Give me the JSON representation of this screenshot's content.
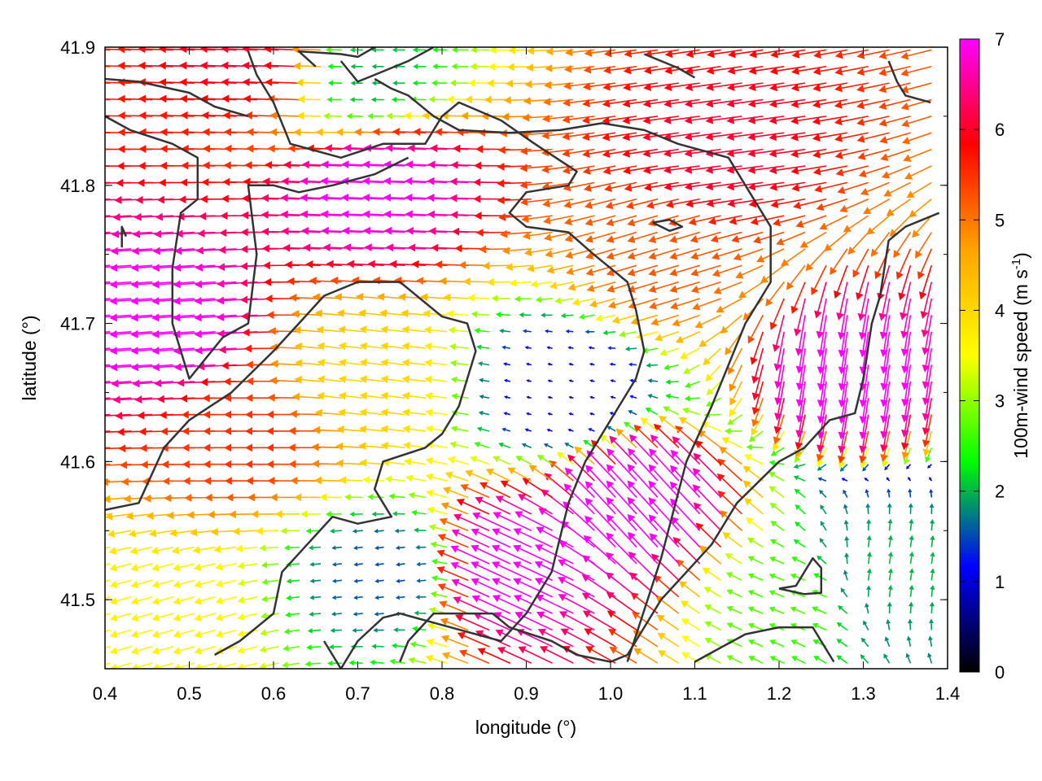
{
  "chart_data": {
    "type": "vector-field",
    "xlabel": "longitude (°)",
    "ylabel": "latitude (°)",
    "xlim": [
      0.4,
      1.4
    ],
    "ylim": [
      41.45,
      41.9
    ],
    "xticks": [
      "0.4",
      "0.5",
      "0.6",
      "0.7",
      "0.8",
      "0.9",
      "1.0",
      "1.1",
      "1.2",
      "1.3",
      "1.4"
    ],
    "yticks": [
      "41.5",
      "41.6",
      "41.7",
      "41.8",
      "41.9"
    ],
    "colorbar": {
      "label": "100m-wind speed (m s",
      "label_sup": "-1",
      "label_end": ")",
      "range": [
        0,
        7
      ],
      "ticks": [
        "0",
        "1",
        "2",
        "3",
        "4",
        "5",
        "6",
        "7"
      ],
      "stops": [
        "#000000",
        "#0000ff",
        "#00ff00",
        "#ffff00",
        "#ffa500",
        "#ff0000",
        "#ff00ff"
      ]
    },
    "field": {
      "description_units": "wind speed in m/s",
      "lon_step": 0.025,
      "lat_step": 0.012,
      "regions": [
        {
          "lon": 0.75,
          "lat": 41.8,
          "u": -7.0,
          "v": 0.3
        },
        {
          "lon": 0.5,
          "lat": 41.7,
          "u": -7.0,
          "v": -0.5
        },
        {
          "lon": 1.15,
          "lat": 41.82,
          "u": -6.0,
          "v": -0.8
        },
        {
          "lon": 1.28,
          "lat": 41.68,
          "u": -1.0,
          "v": -7.0
        },
        {
          "lon": 1.05,
          "lat": 41.56,
          "u": -5.0,
          "v": 5.5
        },
        {
          "lon": 0.9,
          "lat": 41.52,
          "u": -6.5,
          "v": 3.0
        },
        {
          "lon": 0.6,
          "lat": 41.62,
          "u": -5.5,
          "v": 0.0
        },
        {
          "lon": 0.72,
          "lat": 41.66,
          "u": -4.0,
          "v": 0.5
        },
        {
          "lon": 0.95,
          "lat": 41.65,
          "u": -0.8,
          "v": 0.2
        },
        {
          "lon": 0.74,
          "lat": 41.52,
          "u": -1.5,
          "v": -0.2
        },
        {
          "lon": 0.72,
          "lat": 41.88,
          "u": -2.0,
          "v": 0.0
        },
        {
          "lon": 1.22,
          "lat": 41.5,
          "u": -2.5,
          "v": 1.0
        },
        {
          "lon": 1.33,
          "lat": 41.52,
          "u": 0.3,
          "v": 2.0
        },
        {
          "lon": 0.48,
          "lat": 41.48,
          "u": -3.5,
          "v": -1.0
        },
        {
          "lon": 1.08,
          "lat": 41.75,
          "u": -5.0,
          "v": -1.5
        },
        {
          "lon": 0.6,
          "lat": 41.89,
          "u": -6.0,
          "v": 0.2
        }
      ]
    },
    "coastlines": [
      [
        [
          0.4,
          41.877
        ],
        [
          0.44,
          41.875
        ],
        [
          0.5,
          41.867
        ],
        [
          0.53,
          41.857
        ],
        [
          0.57,
          41.85
        ]
      ],
      [
        [
          0.57,
          41.897
        ],
        [
          0.58,
          41.88
        ],
        [
          0.6,
          41.86
        ],
        [
          0.62,
          41.83
        ],
        [
          0.68,
          41.82
        ],
        [
          0.73,
          41.83
        ],
        [
          0.75,
          41.83
        ],
        [
          0.78,
          41.83
        ],
        [
          0.8,
          41.85
        ],
        [
          0.82,
          41.86
        ],
        [
          0.87,
          41.847
        ],
        [
          0.91,
          41.83
        ],
        [
          0.96,
          41.81
        ],
        [
          0.95,
          41.8
        ],
        [
          0.9,
          41.795
        ],
        [
          0.88,
          41.78
        ],
        [
          0.9,
          41.77
        ],
        [
          0.95,
          41.766
        ],
        [
          0.98,
          41.75
        ],
        [
          1.02,
          41.73
        ],
        [
          1.03,
          41.71
        ],
        [
          1.04,
          41.68
        ],
        [
          1.03,
          41.66
        ],
        [
          1.0,
          41.63
        ],
        [
          0.97,
          41.6
        ],
        [
          0.95,
          41.57
        ],
        [
          0.93,
          41.52
        ],
        [
          0.9,
          41.49
        ],
        [
          0.87,
          41.47
        ],
        [
          0.81,
          41.48
        ],
        [
          0.75,
          41.49
        ],
        [
          0.73,
          41.487
        ],
        [
          0.7,
          41.47
        ],
        [
          0.68,
          41.45
        ],
        [
          0.66,
          41.47
        ]
      ],
      [
        [
          0.4,
          41.85
        ],
        [
          0.43,
          41.84
        ],
        [
          0.48,
          41.83
        ],
        [
          0.51,
          41.82
        ],
        [
          0.51,
          41.79
        ],
        [
          0.49,
          41.78
        ],
        [
          0.48,
          41.74
        ],
        [
          0.48,
          41.7
        ],
        [
          0.5,
          41.66
        ],
        [
          0.54,
          41.69
        ],
        [
          0.57,
          41.7
        ],
        [
          0.58,
          41.75
        ],
        [
          0.57,
          41.8
        ],
        [
          0.6,
          41.8
        ],
        [
          0.63,
          41.795
        ],
        [
          0.67,
          41.8
        ],
        [
          0.72,
          41.808
        ],
        [
          0.76,
          41.82
        ]
      ],
      [
        [
          0.42,
          41.755
        ],
        [
          0.42,
          41.77
        ],
        [
          0.425,
          41.763
        ]
      ],
      [
        [
          0.65,
          41.886
        ],
        [
          0.63,
          41.897
        ],
        [
          0.68,
          41.895
        ],
        [
          0.7,
          41.893
        ],
        [
          0.72,
          41.9
        ]
      ],
      [
        [
          0.68,
          41.89
        ],
        [
          0.7,
          41.875
        ],
        [
          0.72,
          41.88
        ],
        [
          0.76,
          41.89
        ],
        [
          0.79,
          41.9
        ]
      ],
      [
        [
          0.4,
          41.565
        ],
        [
          0.44,
          41.57
        ],
        [
          0.47,
          41.61
        ],
        [
          0.5,
          41.63
        ],
        [
          0.55,
          41.65
        ],
        [
          0.6,
          41.68
        ],
        [
          0.63,
          41.7
        ],
        [
          0.66,
          41.72
        ],
        [
          0.7,
          41.73
        ],
        [
          0.75,
          41.73
        ],
        [
          0.77,
          41.72
        ],
        [
          0.8,
          41.705
        ],
        [
          0.83,
          41.7
        ],
        [
          0.84,
          41.68
        ],
        [
          0.83,
          41.66
        ],
        [
          0.82,
          41.64
        ],
        [
          0.8,
          41.62
        ],
        [
          0.78,
          41.61
        ],
        [
          0.73,
          41.6
        ],
        [
          0.72,
          41.58
        ],
        [
          0.74,
          41.56
        ],
        [
          0.7,
          41.555
        ],
        [
          0.67,
          41.56
        ],
        [
          0.64,
          41.54
        ],
        [
          0.61,
          41.52
        ],
        [
          0.6,
          41.49
        ],
        [
          0.56,
          41.47
        ],
        [
          0.53,
          41.46
        ]
      ],
      [
        [
          0.75,
          41.455
        ],
        [
          0.76,
          41.47
        ],
        [
          0.79,
          41.49
        ],
        [
          0.82,
          41.49
        ],
        [
          0.86,
          41.49
        ],
        [
          0.88,
          41.48
        ],
        [
          0.93,
          41.47
        ],
        [
          0.96,
          41.46
        ],
        [
          1.0,
          41.455
        ],
        [
          1.02,
          41.46
        ],
        [
          1.04,
          41.48
        ],
        [
          1.06,
          41.5
        ],
        [
          1.09,
          41.52
        ],
        [
          1.12,
          41.54
        ],
        [
          1.15,
          41.57
        ],
        [
          1.2,
          41.6
        ],
        [
          1.23,
          41.61
        ],
        [
          1.26,
          41.63
        ],
        [
          1.29,
          41.635
        ],
        [
          1.3,
          41.66
        ],
        [
          1.31,
          41.7
        ],
        [
          1.32,
          41.72
        ],
        [
          1.33,
          41.76
        ],
        [
          1.35,
          41.77
        ],
        [
          1.37,
          41.775
        ],
        [
          1.39,
          41.78
        ]
      ],
      [
        [
          1.02,
          41.455
        ],
        [
          1.06,
          41.53
        ],
        [
          1.09,
          41.6
        ],
        [
          1.12,
          41.64
        ],
        [
          1.16,
          41.7
        ],
        [
          1.19,
          41.73
        ],
        [
          1.19,
          41.77
        ],
        [
          1.17,
          41.79
        ],
        [
          1.14,
          41.82
        ],
        [
          1.08,
          41.83
        ],
        [
          1.04,
          41.84
        ],
        [
          0.99,
          41.845
        ],
        [
          0.94,
          41.84
        ],
        [
          0.88,
          41.838
        ],
        [
          0.82,
          41.84
        ],
        [
          0.79,
          41.85
        ],
        [
          0.76,
          41.865
        ],
        [
          0.74,
          41.87
        ],
        [
          0.72,
          41.877
        ]
      ],
      [
        [
          1.05,
          41.773
        ],
        [
          1.07,
          41.775
        ],
        [
          1.085,
          41.77
        ],
        [
          1.07,
          41.767
        ],
        [
          1.05,
          41.773
        ]
      ],
      [
        [
          1.2,
          41.508
        ],
        [
          1.22,
          41.51
        ],
        [
          1.24,
          41.53
        ],
        [
          1.25,
          41.523
        ],
        [
          1.25,
          41.505
        ],
        [
          1.23,
          41.504
        ],
        [
          1.2,
          41.508
        ]
      ],
      [
        [
          1.1,
          41.455
        ],
        [
          1.13,
          41.465
        ],
        [
          1.16,
          41.475
        ],
        [
          1.2,
          41.48
        ],
        [
          1.24,
          41.48
        ],
        [
          1.26,
          41.46
        ],
        [
          1.265,
          41.455
        ]
      ],
      [
        [
          1.04,
          41.895
        ],
        [
          1.06,
          41.89
        ],
        [
          1.08,
          41.885
        ],
        [
          1.1,
          41.878
        ]
      ],
      [
        [
          1.33,
          41.89
        ],
        [
          1.34,
          41.875
        ],
        [
          1.35,
          41.865
        ],
        [
          1.38,
          41.86
        ]
      ]
    ]
  }
}
